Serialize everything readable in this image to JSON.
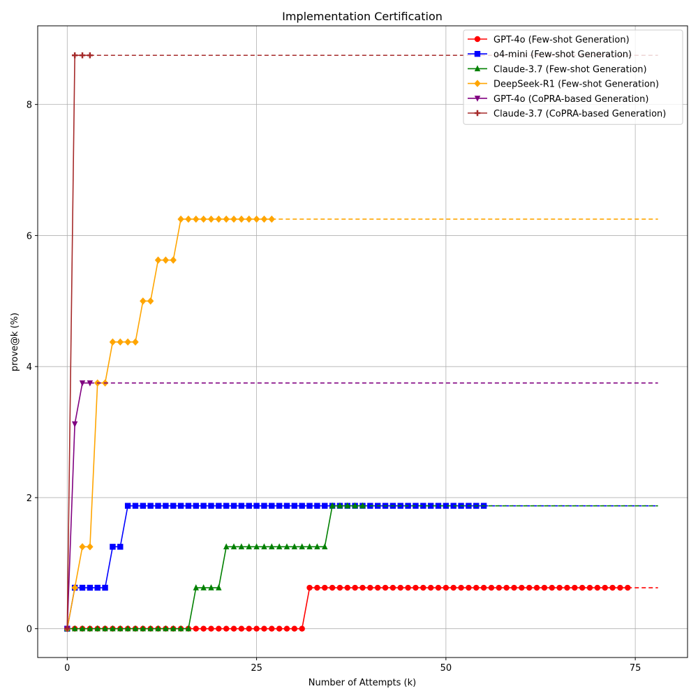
{
  "chart_data": {
    "type": "line",
    "title": "Implementation Certification",
    "xlabel": "Number of Attempts (k)",
    "ylabel": "prove@k (%)",
    "xlim": [
      -3.9,
      81.9
    ],
    "ylim": [
      -0.44,
      9.2
    ],
    "xticks": [
      0,
      25,
      50,
      75
    ],
    "yticks": [
      0,
      2,
      4,
      6,
      8
    ],
    "grid": true,
    "legend_position": "top-right",
    "extend_to_x": 78,
    "series": [
      {
        "name": "GPT-4o (Few-shot Generation)",
        "color": "#ff0000",
        "marker": "circle",
        "last_k": 74,
        "steps": [
          [
            0,
            0
          ],
          [
            32,
            0.625
          ]
        ]
      },
      {
        "name": "o4-mini (Few-shot Generation)",
        "color": "#0000ff",
        "marker": "square",
        "last_k": 55,
        "steps": [
          [
            0,
            0
          ],
          [
            1,
            0.625
          ],
          [
            6,
            1.25
          ],
          [
            8,
            1.875
          ]
        ]
      },
      {
        "name": "Claude-3.7 (Few-shot Generation)",
        "color": "#008000",
        "marker": "triangle-up",
        "last_k": 39,
        "steps": [
          [
            0,
            0
          ],
          [
            17,
            0.625
          ],
          [
            21,
            1.25
          ],
          [
            35,
            1.875
          ]
        ]
      },
      {
        "name": "DeepSeek-R1 (Few-shot Generation)",
        "color": "#ffa500",
        "marker": "diamond",
        "last_k": 27,
        "steps": [
          [
            0,
            0
          ],
          [
            1,
            0.625
          ],
          [
            2,
            1.25
          ],
          [
            4,
            3.75
          ],
          [
            6,
            4.375
          ],
          [
            10,
            5.0
          ],
          [
            12,
            5.625
          ],
          [
            15,
            6.25
          ]
        ]
      },
      {
        "name": "GPT-4o (CoPRA-based Generation)",
        "color": "#800080",
        "marker": "triangle-down",
        "last_k": 3,
        "steps": [
          [
            0,
            0
          ],
          [
            1,
            3.125
          ],
          [
            2,
            3.75
          ]
        ]
      },
      {
        "name": "Claude-3.7 (CoPRA-based Generation)",
        "color": "#a52a2a",
        "marker": "plus",
        "last_k": 3,
        "steps": [
          [
            0,
            0
          ],
          [
            1,
            8.75
          ]
        ]
      }
    ]
  }
}
